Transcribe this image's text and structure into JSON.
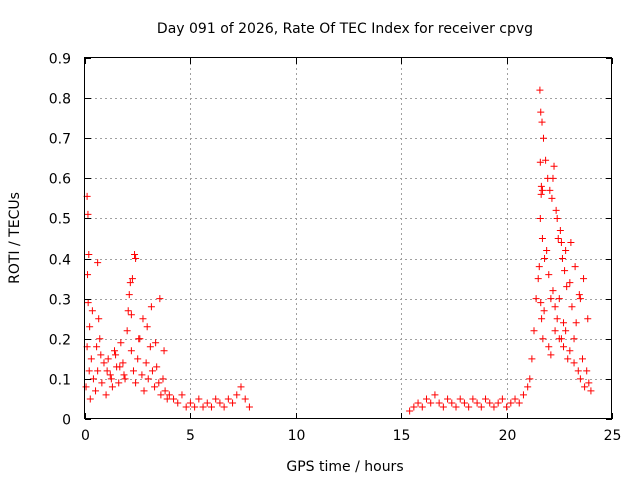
{
  "chart_data": {
    "type": "scatter",
    "title": "Day 091 of 2026, Rate Of TEC Index for receiver cpvg",
    "xlabel": "GPS time / hours",
    "ylabel": "ROTI / TECUs",
    "xlim": [
      0,
      25
    ],
    "ylim": [
      0,
      0.9
    ],
    "xticks": [
      0,
      5,
      10,
      15,
      20,
      25
    ],
    "xtick_labels": [
      "0",
      "5",
      "10",
      "15",
      "20",
      "25"
    ],
    "yticks": [
      0,
      0.1,
      0.2,
      0.3,
      0.4,
      0.5,
      0.6,
      0.7,
      0.8,
      0.9
    ],
    "ytick_labels": [
      "0",
      "0.1",
      "0.2",
      "0.3",
      "0.4",
      "0.5",
      "0.6",
      "0.7",
      "0.8",
      "0.9"
    ],
    "grid": true,
    "marker": "+",
    "series": [
      {
        "name": "ROTI",
        "color": "#ff0000",
        "x": [
          0.05,
          0.1,
          0.15,
          0.2,
          0.25,
          0.3,
          0.4,
          0.5,
          0.6,
          0.7,
          0.8,
          0.9,
          1.0,
          1.1,
          1.2,
          1.3,
          1.4,
          1.5,
          1.6,
          1.7,
          1.8,
          1.9,
          2.0,
          2.1,
          2.2,
          2.3,
          2.4,
          2.5,
          2.6,
          2.7,
          2.8,
          2.9,
          3.0,
          3.1,
          3.2,
          3.3,
          3.4,
          3.5,
          3.6,
          3.7,
          3.8,
          3.9,
          4.0,
          4.2,
          4.4,
          4.6,
          4.8,
          5.0,
          5.2,
          5.4,
          5.6,
          5.8,
          6.0,
          6.2,
          6.4,
          6.6,
          6.8,
          7.0,
          7.2,
          7.4,
          7.6,
          7.8,
          0.12,
          0.18,
          0.22,
          0.35,
          0.55,
          0.65,
          0.75,
          1.05,
          1.25,
          1.45,
          1.65,
          1.85,
          2.05,
          2.15,
          2.25,
          2.35,
          2.55,
          2.75,
          2.95,
          3.15,
          3.35,
          3.55,
          3.75,
          0.1,
          0.14,
          0.6,
          2.2,
          2.4,
          15.4,
          15.6,
          15.8,
          16.0,
          16.2,
          16.4,
          16.6,
          16.8,
          17.0,
          17.2,
          17.4,
          17.6,
          17.8,
          18.0,
          18.2,
          18.4,
          18.6,
          18.8,
          19.0,
          19.2,
          19.4,
          19.6,
          19.8,
          20.0,
          20.2,
          20.4,
          20.6,
          20.8,
          21.0,
          21.1,
          21.2,
          21.3,
          21.4,
          21.5,
          21.55,
          21.6,
          21.65,
          21.7,
          21.8,
          21.9,
          22.0,
          22.1,
          22.2,
          22.3,
          22.4,
          22.5,
          22.6,
          22.7,
          22.8,
          22.9,
          23.0,
          23.1,
          23.2,
          23.3,
          23.4,
          23.5,
          23.6,
          23.7,
          23.8,
          23.9,
          24.0,
          21.58,
          21.62,
          21.68,
          21.75,
          21.85,
          21.95,
          22.05,
          22.15,
          22.25,
          22.35,
          22.45,
          22.55,
          22.65,
          22.75,
          22.85,
          23.05,
          23.25,
          23.45,
          23.65,
          23.85,
          21.6,
          21.64,
          21.7,
          22.2,
          22.4,
          22.6,
          22.8,
          23.0,
          23.5,
          21.62,
          21.66,
          21.72,
          21.78,
          22.0,
          22.1,
          22.3,
          22.5,
          22.7,
          23.2
        ],
        "y": [
          0.08,
          0.18,
          0.29,
          0.12,
          0.05,
          0.15,
          0.1,
          0.07,
          0.12,
          0.2,
          0.09,
          0.14,
          0.06,
          0.15,
          0.11,
          0.08,
          0.17,
          0.13,
          0.09,
          0.19,
          0.14,
          0.1,
          0.22,
          0.31,
          0.17,
          0.12,
          0.09,
          0.15,
          0.2,
          0.11,
          0.07,
          0.14,
          0.1,
          0.18,
          0.12,
          0.08,
          0.13,
          0.09,
          0.06,
          0.1,
          0.07,
          0.05,
          0.06,
          0.05,
          0.04,
          0.06,
          0.03,
          0.04,
          0.03,
          0.05,
          0.03,
          0.04,
          0.03,
          0.05,
          0.04,
          0.03,
          0.05,
          0.04,
          0.06,
          0.08,
          0.05,
          0.03,
          0.36,
          0.41,
          0.23,
          0.27,
          0.18,
          0.25,
          0.16,
          0.12,
          0.1,
          0.16,
          0.13,
          0.11,
          0.27,
          0.34,
          0.35,
          0.41,
          0.2,
          0.25,
          0.23,
          0.28,
          0.19,
          0.3,
          0.17,
          0.555,
          0.51,
          0.39,
          0.26,
          0.4,
          0.02,
          0.03,
          0.04,
          0.03,
          0.05,
          0.04,
          0.06,
          0.04,
          0.03,
          0.05,
          0.04,
          0.03,
          0.05,
          0.04,
          0.03,
          0.05,
          0.04,
          0.03,
          0.05,
          0.04,
          0.03,
          0.04,
          0.05,
          0.03,
          0.04,
          0.05,
          0.04,
          0.06,
          0.08,
          0.1,
          0.15,
          0.22,
          0.3,
          0.35,
          0.38,
          0.5,
          0.58,
          0.45,
          0.4,
          0.42,
          0.36,
          0.3,
          0.32,
          0.28,
          0.25,
          0.3,
          0.2,
          0.18,
          0.22,
          0.15,
          0.17,
          0.28,
          0.2,
          0.24,
          0.12,
          0.1,
          0.15,
          0.08,
          0.12,
          0.09,
          0.07,
          0.82,
          0.765,
          0.74,
          0.7,
          0.645,
          0.6,
          0.57,
          0.55,
          0.63,
          0.52,
          0.45,
          0.47,
          0.4,
          0.37,
          0.33,
          0.44,
          0.38,
          0.31,
          0.35,
          0.25,
          0.64,
          0.56,
          0.57,
          0.6,
          0.5,
          0.44,
          0.42,
          0.34,
          0.3,
          0.29,
          0.25,
          0.2,
          0.27,
          0.18,
          0.16,
          0.22,
          0.2,
          0.24,
          0.14
        ]
      }
    ]
  }
}
